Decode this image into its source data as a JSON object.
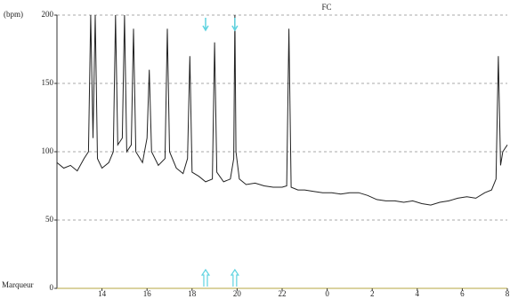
{
  "chart_data": {
    "type": "line",
    "title": "FC",
    "y_label": "(bpm)",
    "marker_label": "Marqueur",
    "x": [
      12.0,
      12.3,
      12.6,
      12.9,
      13.2,
      13.4,
      13.5,
      13.6,
      13.7,
      13.8,
      14.0,
      14.3,
      14.5,
      14.6,
      14.7,
      14.9,
      15.0,
      15.1,
      15.3,
      15.4,
      15.5,
      15.8,
      16.0,
      16.1,
      16.2,
      16.5,
      16.8,
      16.9,
      17.0,
      17.3,
      17.6,
      17.8,
      17.9,
      18.0,
      18.3,
      18.6,
      18.9,
      19.0,
      19.1,
      19.4,
      19.7,
      19.85,
      19.9,
      19.95,
      20.1,
      20.4,
      20.8,
      21.2,
      21.6,
      22.0,
      22.2,
      22.3,
      22.4,
      22.7,
      23.0,
      23.4,
      23.8,
      24.2,
      24.6,
      25.0,
      25.4,
      25.8,
      26.2,
      26.6,
      27.0,
      27.4,
      27.8,
      28.2,
      28.6,
      29.0,
      29.4,
      29.8,
      30.2,
      30.6,
      31.0,
      31.3,
      31.5,
      31.6,
      31.7,
      31.8,
      32.0
    ],
    "series": [
      {
        "name": "FC",
        "color": "#222222",
        "values": [
          92,
          88,
          90,
          86,
          95,
          100,
          200,
          110,
          200,
          95,
          88,
          92,
          100,
          200,
          105,
          110,
          200,
          100,
          105,
          190,
          100,
          92,
          110,
          160,
          100,
          90,
          95,
          190,
          100,
          88,
          84,
          95,
          170,
          85,
          82,
          78,
          80,
          180,
          85,
          78,
          80,
          95,
          200,
          100,
          80,
          76,
          77,
          75,
          74,
          74,
          75,
          190,
          74,
          72,
          72,
          71,
          70,
          70,
          69,
          70,
          70,
          68,
          65,
          64,
          64,
          63,
          64,
          62,
          61,
          63,
          64,
          66,
          67,
          66,
          70,
          72,
          80,
          170,
          90,
          100,
          105
        ]
      }
    ],
    "markers": [
      18.6,
      19.9
    ],
    "marker_color": "#5fd3e0",
    "xlim": [
      12,
      32
    ],
    "xticks": [
      14,
      16,
      18,
      20,
      22,
      {
        "value": 24,
        "label": "0"
      },
      {
        "value": 26,
        "label": "2"
      },
      {
        "value": 28,
        "label": "4"
      },
      {
        "value": 30,
        "label": "6"
      },
      {
        "value": 32,
        "label": "8"
      }
    ],
    "ylim": [
      0,
      200
    ],
    "yticks": [
      0,
      50,
      100,
      150,
      200
    ],
    "grid": true
  }
}
